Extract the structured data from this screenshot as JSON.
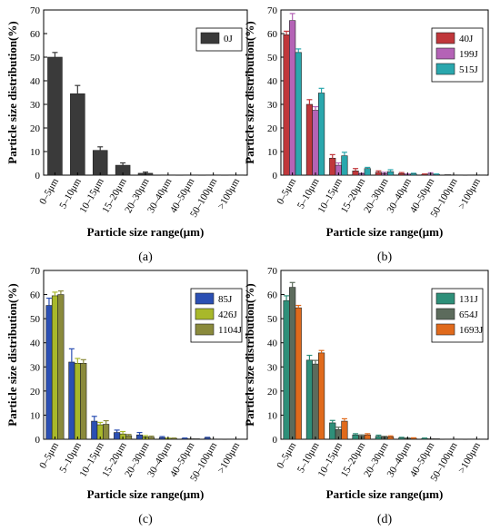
{
  "chart_data": [
    {
      "type": "bar",
      "panel": "(a)",
      "categories": [
        "0–5μm",
        "5–10μm",
        "10–15μm",
        "15–20μm",
        "20–30μm",
        "30–40μm",
        "40–50μm",
        "50–100μm",
        ">100μm"
      ],
      "series": [
        {
          "name": "0J",
          "color": "#3a3a3a",
          "values": [
            50,
            34.5,
            10.5,
            4.2,
            0.8,
            0.1,
            0.05,
            0.02,
            0.01
          ],
          "errors": [
            2,
            3.5,
            1.5,
            1,
            0.5,
            0.05,
            0.03,
            0.02,
            0.01
          ]
        }
      ],
      "xlabel": "Particle size range(μm)",
      "ylabel": "Particle size distribution(%)",
      "ylim": [
        0,
        70
      ],
      "yticks": [
        "0",
        "10",
        "20",
        "30",
        "40",
        "50",
        "60",
        "70"
      ],
      "legend": "top-right"
    },
    {
      "type": "bar",
      "panel": "(b)",
      "categories": [
        "0–5μm",
        "5–10μm",
        "10–15μm",
        "15–20μm",
        "20–30μm",
        "30–40μm",
        "40–50μm",
        "50–100μm",
        ">100μm"
      ],
      "series": [
        {
          "name": "40J",
          "color": "#c0373b",
          "values": [
            59.5,
            30,
            7.2,
            1.8,
            1.2,
            0.7,
            0.3,
            0.2,
            0.05
          ],
          "errors": [
            1.5,
            2,
            1.5,
            1,
            0.6,
            0.4,
            0.2,
            0.1,
            0.05
          ]
        },
        {
          "name": "199J",
          "color": "#b463b6",
          "values": [
            65.5,
            27.5,
            4.2,
            0.5,
            0.7,
            0.3,
            0.5,
            0.1,
            0.02
          ],
          "errors": [
            3,
            1.5,
            1,
            0.3,
            0.5,
            0.2,
            0.5,
            0.1,
            0.02
          ]
        },
        {
          "name": "515J",
          "color": "#2aa7ad",
          "values": [
            52,
            34.8,
            8.2,
            2.8,
            1.5,
            0.5,
            0.3,
            0.1,
            0.02
          ],
          "errors": [
            1.5,
            2,
            1.5,
            0.5,
            0.8,
            0.3,
            0.2,
            0.1,
            0.02
          ]
        }
      ],
      "xlabel": "Particle size range(μm)",
      "ylabel": "Particle size distribution(%)",
      "ylim": [
        0,
        70
      ],
      "yticks": [
        "0",
        "10",
        "20",
        "30",
        "40",
        "50",
        "60",
        "70"
      ],
      "legend": "top-right"
    },
    {
      "type": "bar",
      "panel": "(c)",
      "categories": [
        "0–5μm",
        "5–10μm",
        "10–15μm",
        "15–20μm",
        "20–30μm",
        "30–40μm",
        "40–50μm",
        "50–100μm",
        ">100μm"
      ],
      "series": [
        {
          "name": "85J",
          "color": "#2b4fb3",
          "values": [
            55.5,
            32,
            7.5,
            2.8,
            1.8,
            0.7,
            0.3,
            0.5,
            0.05
          ],
          "errors": [
            3,
            5.5,
            2,
            1,
            1,
            0.4,
            0.2,
            0.3,
            0.05
          ]
        },
        {
          "name": "426J",
          "color": "#a8b82a",
          "values": [
            59.5,
            31.5,
            6,
            2.2,
            1,
            0.3,
            0.2,
            0.1,
            0.02
          ],
          "errors": [
            1.5,
            2,
            1,
            1,
            0.5,
            0.2,
            0.1,
            0.1,
            0.02
          ]
        },
        {
          "name": "1104J",
          "color": "#8a8a3c",
          "values": [
            60,
            31.5,
            6.2,
            1.5,
            0.8,
            0.3,
            0.2,
            0.1,
            0.02
          ],
          "errors": [
            1.5,
            1.5,
            1.5,
            0.5,
            0.5,
            0.2,
            0.1,
            0.1,
            0.02
          ]
        }
      ],
      "xlabel": "Particle size range(μm)",
      "ylabel": "Particle size distribution(%)",
      "ylim": [
        0,
        70
      ],
      "yticks": [
        "0",
        "10",
        "20",
        "30",
        "40",
        "50",
        "60",
        "70"
      ],
      "legend": "top-right"
    },
    {
      "type": "bar",
      "panel": "(d)",
      "categories": [
        "0–5μm",
        "5–10μm",
        "10–15μm",
        "15–20μm",
        "20–30μm",
        "30–40μm",
        "40–50μm",
        "50–100μm",
        ">100μm"
      ],
      "series": [
        {
          "name": "131J",
          "color": "#2e8f79",
          "values": [
            57.5,
            32.8,
            6.8,
            1.8,
            1.2,
            0.5,
            0.3,
            0.1,
            0.02
          ],
          "errors": [
            2,
            2,
            1,
            0.5,
            0.5,
            0.3,
            0.2,
            0.1,
            0.02
          ]
        },
        {
          "name": "654J",
          "color": "#5c6b5c",
          "values": [
            63,
            31.2,
            4,
            1.3,
            0.8,
            0.3,
            0.2,
            0.1,
            0.02
          ],
          "errors": [
            2,
            1.5,
            1,
            0.5,
            0.4,
            0.2,
            0.1,
            0.1,
            0.02
          ]
        },
        {
          "name": "1693J",
          "color": "#e06a1c",
          "values": [
            54.5,
            35.8,
            7.5,
            1.8,
            1,
            0.4,
            0.2,
            0.1,
            0.02
          ],
          "errors": [
            1,
            1,
            1,
            0.5,
            0.4,
            0.2,
            0.1,
            0.1,
            0.02
          ]
        }
      ],
      "xlabel": "Particle size range(μm)",
      "ylabel": "Particle size distribution(%)",
      "ylim": [
        0,
        70
      ],
      "yticks": [
        "0",
        "10",
        "20",
        "30",
        "40",
        "50",
        "60",
        "70"
      ],
      "legend": "top-right"
    }
  ]
}
